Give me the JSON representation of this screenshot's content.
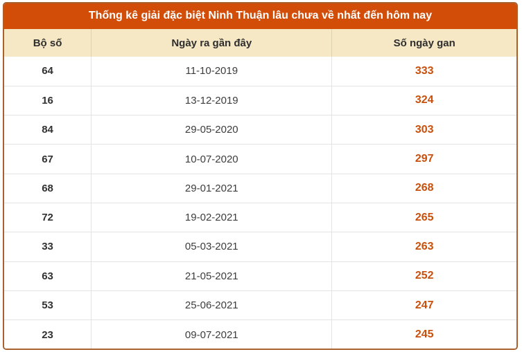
{
  "title": "Thống kê giải đặc biệt Ninh Thuận lâu chưa về nhất đến hôm nay",
  "table": {
    "columns": [
      "Bộ số",
      "Ngày ra gần đây",
      "Số ngày gan"
    ],
    "rows": [
      {
        "number": "64",
        "date": "11-10-2019",
        "days": "333"
      },
      {
        "number": "16",
        "date": "13-12-2019",
        "days": "324"
      },
      {
        "number": "84",
        "date": "29-05-2020",
        "days": "303"
      },
      {
        "number": "67",
        "date": "10-07-2020",
        "days": "297"
      },
      {
        "number": "68",
        "date": "29-01-2021",
        "days": "268"
      },
      {
        "number": "72",
        "date": "19-02-2021",
        "days": "265"
      },
      {
        "number": "33",
        "date": "05-03-2021",
        "days": "263"
      },
      {
        "number": "63",
        "date": "21-05-2021",
        "days": "252"
      },
      {
        "number": "53",
        "date": "25-06-2021",
        "days": "247"
      },
      {
        "number": "23",
        "date": "09-07-2021",
        "days": "245"
      }
    ]
  },
  "colors": {
    "title_bg": "#d14d08",
    "header_bg": "#f6e8c4",
    "table_border": "#a8602d",
    "row_divider": "#e3e3e3",
    "days_accent": "#c8500c",
    "dark_text": "#313131"
  }
}
